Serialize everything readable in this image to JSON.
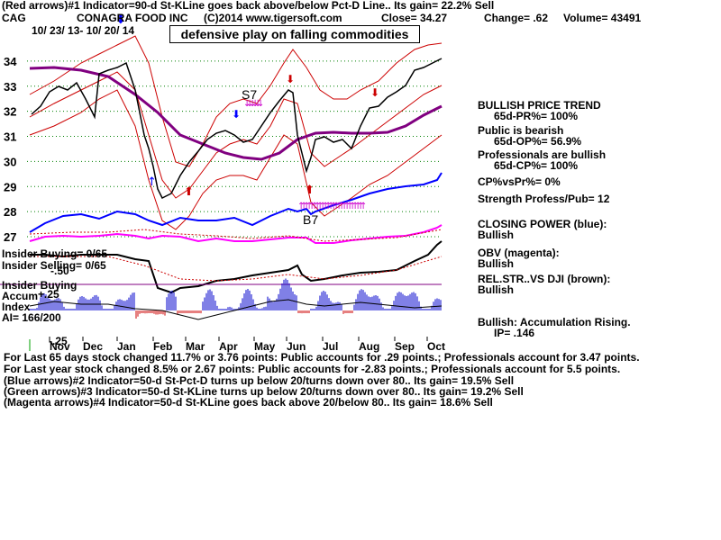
{
  "header": {
    "line1": "(Red arrows)#1 Indicator=90-d St-KLine goes back above/below Pct-D Line.. Its gain= 22.2% Sell",
    "symbol": "CAG",
    "company": "CONAGRA FOOD INC",
    "copyright": "(C)2014 www.tigersoft.com",
    "close": "Close=  34.27",
    "change": "Change= .62",
    "volume": "Volume= 43491",
    "date_range": "10/ 23/ 13- 10/ 20/ 14",
    "callout": "defensive play on falling commodities"
  },
  "right_panel": {
    "l1": "BULLISH PRICE TREND",
    "l2": "65d-PR%= 100%",
    "l3": "Public is bearish",
    "l4": "65d-OP%= 56.9%",
    "l5": "Professionals are bullish",
    "l6": "65d-CP%= 100%",
    "l7": "CP%vsPr%=  0%",
    "l8": "Strength Profess/Pub= 12",
    "l9": "CLOSING POWER (blue):",
    "l10": "Bullish",
    "l11": "OBV (magenta):",
    "l12": "Bullish",
    "l13": "REL.STR..VS DJI (brown):",
    "l14": "Bullish",
    "l15": "Bullish: Accumulation Rising.",
    "l16": "IP=  .146"
  },
  "left_labels": {
    "insider_buying": "Insider Buying= 0/65",
    "insider_selling": "Insider Selling= 0/65",
    "insider_buying2": "Insider Buying",
    "accum": "Accum",
    "index": "Index",
    "ai": "AI= 166/200",
    "plus25": "+.25",
    "minus50": "-.50",
    "minus25": "-.25",
    "s7": "S7",
    "b7": "B7"
  },
  "footer": {
    "f1": "For Last 65 days stock changed  11.7% or  3.76 points:  Public accounts for  .29 points.;  Professionals account for  3.47 points.",
    "f2": "For Last year stock changed  8.5% or  2.67 points:  Public accounts for -2.83 points.;  Professionals account for  5.5 points.",
    "f3": "(Blue arrows)#2 Indicator=50-d St-Pct-D turns up below 20/turns down over 80.. Its gain= 19.5% Sell",
    "f4": "(Green arrows)#3 Indicator=50-d St-KLine turns up below 20/turns down over 80.. Its gain= 19.2% Sell",
    "f5": "(Magenta arrows)#4 Indicator=50-d St-KLine goes back above 20/below 80.. Its gain= 18.6% Sell"
  },
  "colors": {
    "price": "#000000",
    "bands": "#cc0000",
    "ma": "#800080",
    "closing_power": "#0000ff",
    "obv": "#ff00ff",
    "rel_str": "#000000",
    "accum_pos": "#0000cc",
    "accum_neg": "#cc0000",
    "grid": "#008000",
    "insider_line": "#800080"
  },
  "chart_data": {
    "type": "line",
    "title": "CONAGRA FOOD INC",
    "symbol": "CAG",
    "ylim": [
      27,
      34.5
    ],
    "y_ticks": [
      27,
      28,
      29,
      30,
      31,
      32,
      33,
      34
    ],
    "x_tick_labels": [
      "Nov",
      "Dec",
      "Jan",
      "Feb",
      "Mar",
      "Apr",
      "May",
      "Jun",
      "Jul",
      "Aug",
      "Sep",
      "Oct"
    ],
    "series": [
      {
        "name": "Price",
        "x": [
          "Nov",
          "Dec",
          "Jan",
          "Feb",
          "Mar",
          "Apr",
          "May",
          "Jun",
          "Jul",
          "Aug",
          "Sep",
          "Oct"
        ],
        "values": [
          31.9,
          33.2,
          33.9,
          28.7,
          29.8,
          31.0,
          30.8,
          32.5,
          31.0,
          32.4,
          33.2,
          34.27
        ]
      },
      {
        "name": "Moving average",
        "x": [
          "Nov",
          "Dec",
          "Jan",
          "Feb",
          "Mar",
          "Apr",
          "May",
          "Jun",
          "Jul",
          "Aug",
          "Sep",
          "Oct"
        ],
        "values": [
          33.5,
          33.6,
          33.2,
          32.2,
          31.0,
          30.3,
          30.1,
          30.8,
          31.1,
          31.2,
          31.7,
          32.3
        ]
      }
    ],
    "grid": true
  }
}
